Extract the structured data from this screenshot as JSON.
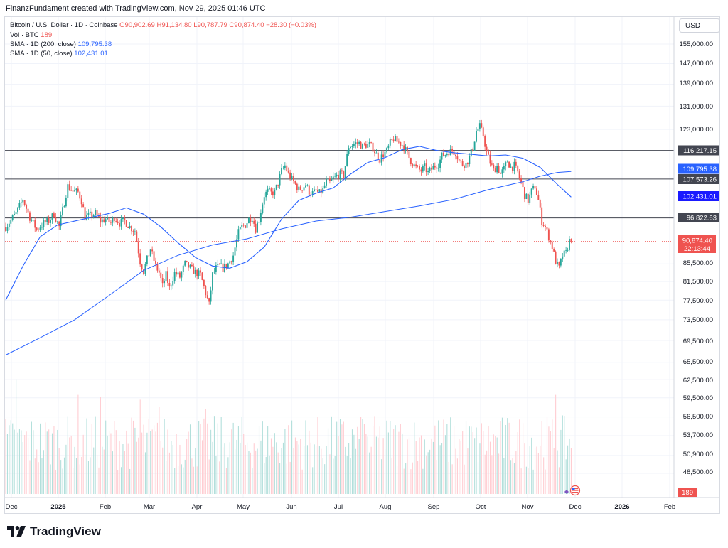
{
  "header": {
    "attribution": "FinanzFundament created with TradingView.com, Nov 29, 2025 01:46 UTC"
  },
  "legend": {
    "symbol": "Bitcoin / U.S. Dollar · 1D · Coinbase",
    "open": "O90,902.69",
    "high": "H91,134.80",
    "low": "L90,787.79",
    "close": "C90,874.40",
    "change": "−28.30 (−0.03%)",
    "vol_label": "Vol · BTC",
    "vol_value": "189",
    "sma200_label": "SMA · 1D (200, close)",
    "sma200_value": "109,795.38",
    "sma50_label": "SMA · 1D (50, close)",
    "sma50_value": "102,431.01"
  },
  "currency_button": "USD",
  "brand": "TradingView",
  "chart_data": {
    "type": "candlestick",
    "symbol": "BTC/USD",
    "interval": "1D",
    "y_axis": {
      "ticks": [
        "155,000.00",
        "147,000.00",
        "139,000.00",
        "131,000.00",
        "123,000.00",
        "116,217.15",
        "109,795.38",
        "107,573.26",
        "102,431.01",
        "96,822.63",
        "90,874.40",
        "85,500.00",
        "81,500.00",
        "77,500.00",
        "73,500.00",
        "69,500.00",
        "65,500.00",
        "62,500.00",
        "59,500.00",
        "56,500.00",
        "53,700.00",
        "50,900.00",
        "48,500.00",
        "189"
      ],
      "tick_values": [
        155000,
        147000,
        139000,
        131000,
        123000,
        85500,
        81500,
        77500,
        73500,
        69500,
        65500,
        62500,
        59500,
        56500,
        53700,
        50900,
        48500
      ],
      "scale": "log"
    },
    "x_axis": {
      "ticks": [
        "Dec",
        "2025",
        "Feb",
        "Mar",
        "Apr",
        "May",
        "Jun",
        "Jul",
        "Aug",
        "Sep",
        "Oct",
        "Nov",
        "Dec",
        "2026",
        "Feb"
      ]
    },
    "horizontal_lines": [
      116217.15,
      107573.26,
      96822.63
    ],
    "price_labels": [
      {
        "text": "116,217.15",
        "color": "#434651"
      },
      {
        "text": "109,795.38",
        "color": "#2962ff"
      },
      {
        "text": "107,573.26",
        "color": "#434651"
      },
      {
        "text": "102,431.01",
        "color": "#1a1aff"
      },
      {
        "text": "96,822.63",
        "color": "#434651"
      },
      {
        "text": "90,874.40",
        "color": "#ef5350"
      },
      {
        "text": "22:13:44",
        "color": "#ef5350"
      },
      {
        "text": "189",
        "color": "#ef5350"
      }
    ],
    "last_price": 90874.4,
    "countdown": "22:13:44",
    "price_path": [
      [
        0,
        94500
      ],
      [
        6,
        98000
      ],
      [
        10,
        101800
      ],
      [
        14,
        97000
      ],
      [
        18,
        93800
      ],
      [
        22,
        95500
      ],
      [
        25,
        96000
      ],
      [
        28,
        97800
      ],
      [
        31,
        94500
      ],
      [
        34,
        101000
      ],
      [
        36,
        105500
      ],
      [
        39,
        104000
      ],
      [
        42,
        103800
      ],
      [
        44,
        101500
      ],
      [
        46,
        97000
      ],
      [
        49,
        97500
      ],
      [
        52,
        98000
      ],
      [
        55,
        96000
      ],
      [
        58,
        96500
      ],
      [
        61,
        95500
      ],
      [
        63,
        97000
      ],
      [
        66,
        95500
      ],
      [
        69,
        96000
      ],
      [
        72,
        94500
      ],
      [
        75,
        93500
      ],
      [
        78,
        86000
      ],
      [
        80,
        83800
      ],
      [
        82,
        86500
      ],
      [
        84,
        89000
      ],
      [
        87,
        85000
      ],
      [
        89,
        83500
      ],
      [
        91,
        80500
      ],
      [
        93,
        83000
      ],
      [
        95,
        80000
      ],
      [
        98,
        83500
      ],
      [
        101,
        82500
      ],
      [
        104,
        85500
      ],
      [
        107,
        84500
      ],
      [
        110,
        83500
      ],
      [
        113,
        83000
      ],
      [
        116,
        79000
      ],
      [
        118,
        76500
      ],
      [
        120,
        83000
      ],
      [
        122,
        84500
      ],
      [
        124,
        85000
      ],
      [
        126,
        84500
      ],
      [
        129,
        85500
      ],
      [
        132,
        87500
      ],
      [
        135,
        93000
      ],
      [
        137,
        94500
      ],
      [
        139,
        95000
      ],
      [
        141,
        96500
      ],
      [
        143,
        97000
      ],
      [
        145,
        94000
      ],
      [
        147,
        96500
      ],
      [
        150,
        103000
      ],
      [
        152,
        104000
      ],
      [
        154,
        103500
      ],
      [
        156,
        103800
      ],
      [
        158,
        106500
      ],
      [
        160,
        110000
      ],
      [
        162,
        111500
      ],
      [
        164,
        109000
      ],
      [
        166,
        107500
      ],
      [
        168,
        106000
      ],
      [
        170,
        104500
      ],
      [
        172,
        105000
      ],
      [
        174,
        106000
      ],
      [
        176,
        104000
      ],
      [
        178,
        103500
      ],
      [
        180,
        104000
      ],
      [
        182,
        103500
      ],
      [
        184,
        104500
      ],
      [
        186,
        106800
      ],
      [
        188,
        106500
      ],
      [
        190,
        107800
      ],
      [
        192,
        108500
      ],
      [
        194,
        109000
      ],
      [
        196,
        108500
      ],
      [
        199,
        117500
      ],
      [
        201,
        118000
      ],
      [
        203,
        118500
      ],
      [
        205,
        118500
      ],
      [
        207,
        117500
      ],
      [
        209,
        118000
      ],
      [
        211,
        118000
      ],
      [
        213,
        117000
      ],
      [
        215,
        115000
      ],
      [
        217,
        113500
      ],
      [
        219,
        115000
      ],
      [
        221,
        116000
      ],
      [
        223,
        118500
      ],
      [
        225,
        120000
      ],
      [
        227,
        119000
      ],
      [
        229,
        118500
      ],
      [
        231,
        117500
      ],
      [
        233,
        115000
      ],
      [
        235,
        113000
      ],
      [
        237,
        111500
      ],
      [
        239,
        110500
      ],
      [
        241,
        110000
      ],
      [
        243,
        111000
      ],
      [
        245,
        109500
      ],
      [
        247,
        110500
      ],
      [
        249,
        111500
      ],
      [
        251,
        112000
      ],
      [
        253,
        114500
      ],
      [
        255,
        115000
      ],
      [
        257,
        116000
      ],
      [
        259,
        116000
      ],
      [
        261,
        115500
      ],
      [
        263,
        113000
      ],
      [
        265,
        112000
      ],
      [
        267,
        112000
      ],
      [
        269,
        114000
      ],
      [
        271,
        117000
      ],
      [
        273,
        122500
      ],
      [
        275,
        124000
      ],
      [
        277,
        121000
      ],
      [
        279,
        115500
      ],
      [
        281,
        112500
      ],
      [
        283,
        110000
      ],
      [
        285,
        111500
      ],
      [
        287,
        109000
      ],
      [
        289,
        110500
      ],
      [
        291,
        113000
      ],
      [
        293,
        111000
      ],
      [
        295,
        111500
      ],
      [
        297,
        109500
      ],
      [
        299,
        106500
      ],
      [
        301,
        103000
      ],
      [
        303,
        101500
      ],
      [
        305,
        104000
      ],
      [
        307,
        105500
      ],
      [
        309,
        101500
      ],
      [
        311,
        96000
      ],
      [
        313,
        94500
      ],
      [
        315,
        92000
      ],
      [
        317,
        89500
      ],
      [
        319,
        86000
      ],
      [
        321,
        84500
      ],
      [
        323,
        87500
      ],
      [
        325,
        88000
      ],
      [
        327,
        91000
      ],
      [
        328,
        90874
      ]
    ],
    "sma200_path": [
      [
        0,
        66800
      ],
      [
        20,
        70000
      ],
      [
        40,
        73500
      ],
      [
        60,
        78500
      ],
      [
        80,
        84000
      ],
      [
        100,
        87500
      ],
      [
        120,
        90000
      ],
      [
        140,
        91500
      ],
      [
        160,
        94000
      ],
      [
        180,
        96000
      ],
      [
        200,
        97000
      ],
      [
        220,
        98500
      ],
      [
        240,
        100000
      ],
      [
        260,
        101800
      ],
      [
        280,
        104500
      ],
      [
        300,
        106800
      ],
      [
        310,
        108400
      ],
      [
        320,
        109500
      ],
      [
        328,
        109795
      ]
    ],
    "sma50_path": [
      [
        0,
        77500
      ],
      [
        10,
        85000
      ],
      [
        20,
        92000
      ],
      [
        30,
        95000
      ],
      [
        45,
        96500
      ],
      [
        60,
        98000
      ],
      [
        70,
        99500
      ],
      [
        80,
        97800
      ],
      [
        90,
        94500
      ],
      [
        100,
        90500
      ],
      [
        110,
        87000
      ],
      [
        120,
        85000
      ],
      [
        130,
        84500
      ],
      [
        140,
        86000
      ],
      [
        150,
        89500
      ],
      [
        160,
        96500
      ],
      [
        170,
        101500
      ],
      [
        180,
        103500
      ],
      [
        190,
        105000
      ],
      [
        200,
        109000
      ],
      [
        210,
        112500
      ],
      [
        220,
        114000
      ],
      [
        230,
        116500
      ],
      [
        240,
        117500
      ],
      [
        250,
        116200
      ],
      [
        260,
        115500
      ],
      [
        270,
        115000
      ],
      [
        280,
        114500
      ],
      [
        290,
        114800
      ],
      [
        300,
        113800
      ],
      [
        310,
        111000
      ],
      [
        320,
        106000
      ],
      [
        328,
        102431
      ]
    ],
    "volume_peaks": [
      {
        "day": 6,
        "value": 0.95
      },
      {
        "day": 42,
        "value": 0.82
      },
      {
        "day": 55,
        "value": 0.8
      },
      {
        "day": 78,
        "value": 0.78
      },
      {
        "day": 89,
        "value": 0.72
      },
      {
        "day": 116,
        "value": 0.7
      },
      {
        "day": 207,
        "value": 0.62
      },
      {
        "day": 273,
        "value": 0.55
      },
      {
        "day": 311,
        "value": 0.6
      },
      {
        "day": 319,
        "value": 0.82
      }
    ]
  }
}
